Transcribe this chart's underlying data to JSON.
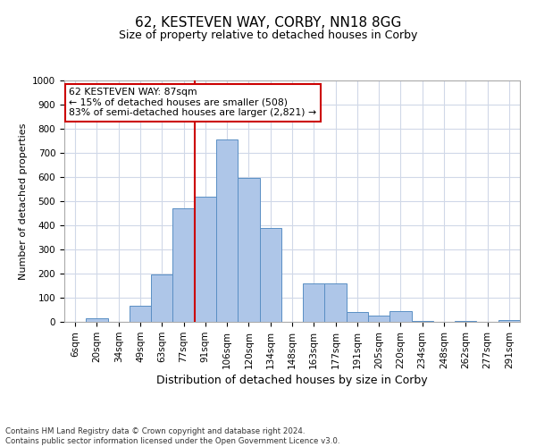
{
  "title": "62, KESTEVEN WAY, CORBY, NN18 8GG",
  "subtitle": "Size of property relative to detached houses in Corby",
  "xlabel": "Distribution of detached houses by size in Corby",
  "ylabel": "Number of detached properties",
  "categories": [
    "6sqm",
    "20sqm",
    "34sqm",
    "49sqm",
    "63sqm",
    "77sqm",
    "91sqm",
    "106sqm",
    "120sqm",
    "134sqm",
    "148sqm",
    "163sqm",
    "177sqm",
    "191sqm",
    "205sqm",
    "220sqm",
    "234sqm",
    "248sqm",
    "262sqm",
    "277sqm",
    "291sqm"
  ],
  "values": [
    0,
    13,
    0,
    65,
    195,
    470,
    520,
    755,
    595,
    390,
    0,
    158,
    158,
    40,
    25,
    45,
    5,
    0,
    5,
    0,
    8
  ],
  "bar_color": "#aec6e8",
  "bar_edge_color": "#5a8fc4",
  "vline_x_index": 6,
  "vline_color": "#cc0000",
  "annotation_text": "62 KESTEVEN WAY: 87sqm\n← 15% of detached houses are smaller (508)\n83% of semi-detached houses are larger (2,821) →",
  "annotation_box_color": "#ffffff",
  "annotation_box_edge_color": "#cc0000",
  "ylim": [
    0,
    1000
  ],
  "yticks": [
    0,
    100,
    200,
    300,
    400,
    500,
    600,
    700,
    800,
    900,
    1000
  ],
  "footer_line1": "Contains HM Land Registry data © Crown copyright and database right 2024.",
  "footer_line2": "Contains public sector information licensed under the Open Government Licence v3.0.",
  "bg_color": "#ffffff",
  "grid_color": "#d0d8e8",
  "title_fontsize": 11,
  "subtitle_fontsize": 9,
  "ylabel_fontsize": 8,
  "xlabel_fontsize": 9,
  "tick_fontsize": 7.5,
  "footer_fontsize": 6.2,
  "annotation_fontsize": 7.8
}
